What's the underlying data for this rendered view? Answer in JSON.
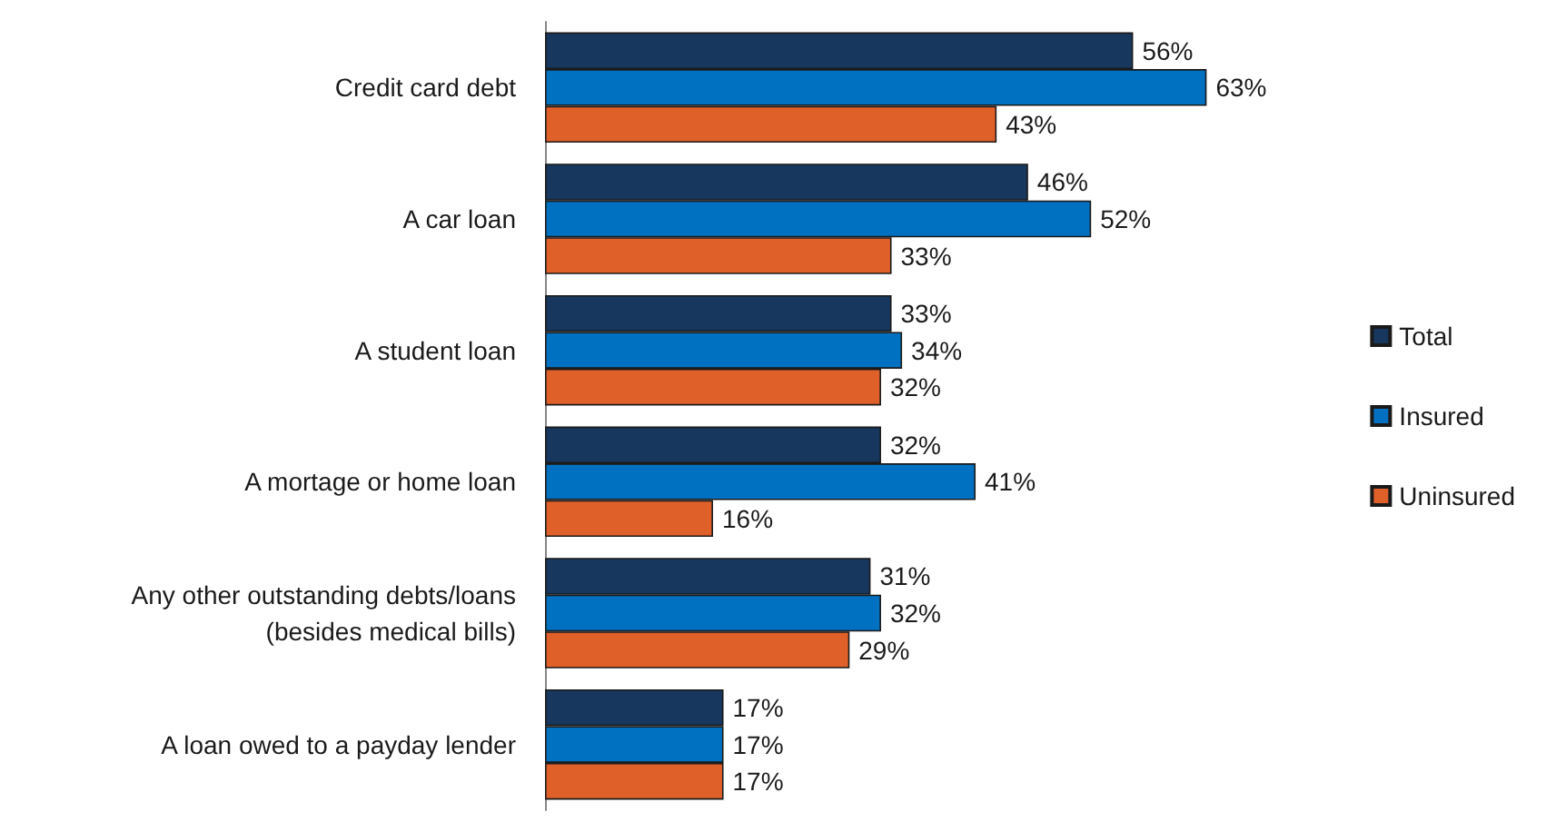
{
  "chart_data": {
    "type": "bar",
    "orientation": "horizontal",
    "categories": [
      "Credit card debt",
      "A car loan",
      "A student loan",
      "A mortage or home loan",
      "Any other outstanding debts/loans\n(besides medical bills)",
      "A loan owed to a payday lender"
    ],
    "series": [
      {
        "name": "Total",
        "color": "#17375e",
        "values": [
          56,
          46,
          33,
          32,
          31,
          17
        ],
        "value_labels": [
          "56%",
          "46%",
          "33%",
          "32%",
          "31%",
          "17%"
        ]
      },
      {
        "name": "Insured",
        "color": "#0070c0",
        "values": [
          63,
          52,
          34,
          41,
          32,
          17
        ],
        "value_labels": [
          "63%",
          "52%",
          "34%",
          "41%",
          "32%",
          "17%"
        ]
      },
      {
        "name": "Uninsured",
        "color": "#e0602a",
        "values": [
          43,
          33,
          32,
          16,
          29,
          17
        ],
        "value_labels": [
          "43%",
          "33%",
          "32%",
          "16%",
          "29%",
          "17%"
        ]
      }
    ],
    "legend": "right"
  }
}
